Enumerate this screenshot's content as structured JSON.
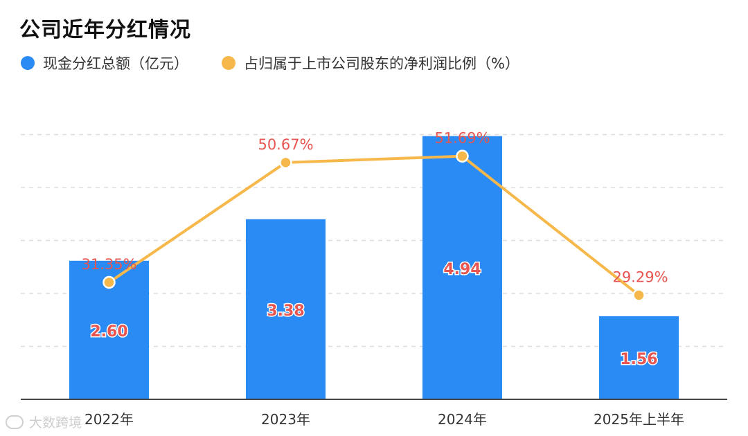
{
  "chart_data": {
    "type": "bar",
    "title": "公司近年分红情况",
    "categories": [
      "2022年",
      "2023年",
      "2024年",
      "2025年上半年"
    ],
    "series": [
      {
        "name": "现金分红总额（亿元）",
        "type": "bar",
        "values": [
          2.6,
          3.38,
          4.94,
          1.56
        ],
        "labels": [
          "2.60",
          "3.38",
          "4.94",
          "1.56"
        ],
        "color": "#2B8BF4"
      },
      {
        "name": "占归属于上市公司股东的净利润比例（%）",
        "type": "line",
        "values": [
          31.35,
          50.67,
          51.69,
          29.29
        ],
        "labels": [
          "31.35%",
          "50.67%",
          "51.69%",
          "29.29%"
        ],
        "color": "#F6B84B"
      }
    ],
    "bar_axis": {
      "min": 0,
      "max": 5.0
    },
    "line_axis": {
      "min": 12.5,
      "max": 55
    },
    "label_color": "#E85550",
    "gridlines": "dashed"
  },
  "watermark": {
    "text": "大数跨境"
  }
}
